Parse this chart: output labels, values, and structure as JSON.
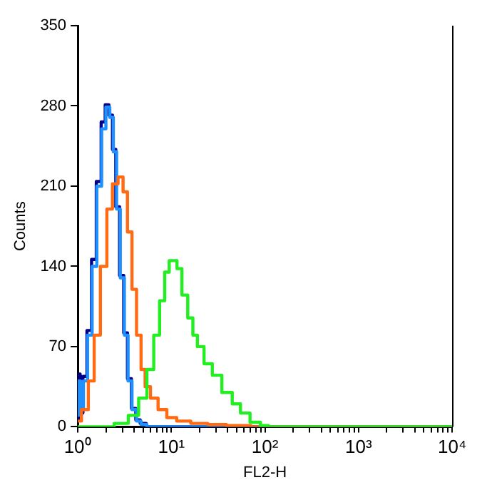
{
  "chart_data": {
    "type": "step",
    "xlabel": "FL2-H",
    "ylabel": "Counts",
    "log": "x",
    "grid": false,
    "legend": false,
    "line_style": "solid",
    "marker": "none",
    "xlim": [
      1,
      10000
    ],
    "ylim": [
      0,
      350
    ],
    "xticks": [
      {
        "value": 1,
        "label": "10⁰"
      },
      {
        "value": 2,
        "label": null
      },
      {
        "value": 3,
        "label": null
      },
      {
        "value": 4,
        "label": null
      },
      {
        "value": 5,
        "label": null
      },
      {
        "value": 6,
        "label": null
      },
      {
        "value": 7,
        "label": null
      },
      {
        "value": 8,
        "label": null
      },
      {
        "value": 9,
        "label": null
      },
      {
        "value": 10,
        "label": "10¹"
      },
      {
        "value": 20,
        "label": null
      },
      {
        "value": 30,
        "label": null
      },
      {
        "value": 40,
        "label": null
      },
      {
        "value": 50,
        "label": null
      },
      {
        "value": 60,
        "label": null
      },
      {
        "value": 70,
        "label": null
      },
      {
        "value": 80,
        "label": null
      },
      {
        "value": 90,
        "label": null
      },
      {
        "value": 100,
        "label": "10²"
      },
      {
        "value": 200,
        "label": null
      },
      {
        "value": 300,
        "label": null
      },
      {
        "value": 400,
        "label": null
      },
      {
        "value": 500,
        "label": null
      },
      {
        "value": 600,
        "label": null
      },
      {
        "value": 700,
        "label": null
      },
      {
        "value": 800,
        "label": null
      },
      {
        "value": 900,
        "label": null
      },
      {
        "value": 1000,
        "label": "10³"
      },
      {
        "value": 2000,
        "label": null
      },
      {
        "value": 3000,
        "label": null
      },
      {
        "value": 4000,
        "label": null
      },
      {
        "value": 5000,
        "label": null
      },
      {
        "value": 6000,
        "label": null
      },
      {
        "value": 7000,
        "label": null
      },
      {
        "value": 8000,
        "label": null
      },
      {
        "value": 9000,
        "label": null
      },
      {
        "value": 10000,
        "label": "10⁴"
      }
    ],
    "yticks": [
      0,
      70,
      140,
      210,
      280,
      350
    ],
    "series": [
      {
        "color": "#00008b",
        "x": [
          1,
          1.03,
          1.09,
          1.18,
          1.33,
          1.48,
          1.68,
          1.88,
          2.05,
          2.25,
          2.45,
          2.65,
          2.95,
          3.25,
          3.55,
          3.95,
          4.4,
          4.9,
          5.9,
          10000
        ],
        "values": [
          6,
          46,
          12,
          44,
          84,
          146,
          214,
          266,
          281,
          272,
          242,
          192,
          132,
          82,
          42,
          16,
          6,
          3,
          0,
          0
        ]
      },
      {
        "color": "#1e90ff",
        "x": [
          1,
          1.04,
          1.1,
          1.2,
          1.35,
          1.5,
          1.7,
          1.9,
          2.1,
          2.3,
          2.5,
          2.7,
          3,
          3.3,
          3.6,
          4,
          4.5,
          5,
          6,
          10000
        ],
        "values": [
          10,
          40,
          15,
          40,
          80,
          140,
          210,
          260,
          279,
          270,
          240,
          190,
          130,
          80,
          40,
          15,
          5,
          2,
          0,
          0
        ]
      },
      {
        "color": "#ff6a13",
        "x": [
          1,
          1.2,
          1.4,
          1.6,
          1.9,
          2.2,
          2.5,
          2.9,
          3.2,
          3.6,
          4,
          4.5,
          5,
          5.5,
          6.5,
          8,
          10,
          13,
          20,
          30,
          50,
          100,
          10000
        ],
        "values": [
          5,
          15,
          40,
          80,
          140,
          190,
          212,
          218,
          205,
          170,
          120,
          80,
          50,
          35,
          25,
          15,
          8,
          5,
          3,
          2,
          1,
          0,
          0
        ]
      },
      {
        "color": "#22ee22",
        "x": [
          1,
          2,
          3,
          4,
          5,
          6,
          7,
          8,
          9,
          10,
          11,
          12,
          14,
          16,
          18,
          20,
          25,
          30,
          40,
          50,
          60,
          80,
          100,
          120,
          10000
        ],
        "values": [
          0,
          0,
          3,
          10,
          25,
          50,
          80,
          110,
          135,
          145,
          145,
          138,
          115,
          95,
          80,
          70,
          55,
          45,
          30,
          20,
          12,
          4,
          1,
          0,
          0
        ]
      }
    ]
  }
}
